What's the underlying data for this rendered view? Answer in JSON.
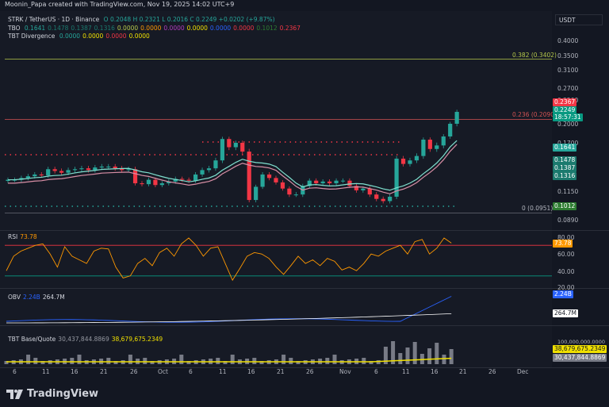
{
  "header": {
    "title": "Moonin_Papa created with TradingView.com, Nov 19, 2025 14:02 UTC+9"
  },
  "currency_button": "USDT",
  "main_legend": {
    "line1_symbol": "STRK / TetherUS · 1D · Binance",
    "line1_values": "O 0.2048  H 0.2321  L 0.2016  C 0.2249  +0.0202 (+9.87%)",
    "line2_label": "TBO",
    "line2_values": [
      "0.1641",
      "0.1478",
      "0.1387",
      "0.1316",
      "0.0000",
      "0.0000",
      "0.0000",
      "0.0000",
      "0.0000",
      "0.0000",
      "0.1012",
      "0.2367"
    ],
    "line3_label": "TBT Divergence",
    "line3_values": [
      "0.0000",
      "0.0000",
      "0.0000",
      "0.0000"
    ]
  },
  "fib_levels": [
    {
      "label": "0.382 (0.3402)",
      "price": 0.3402,
      "color": "#b5c84a"
    },
    {
      "label": "0.236 (0.2090)",
      "price": 0.209,
      "color": "#d35353"
    },
    {
      "label": "0 (0.0951)",
      "price": 0.0951,
      "color": "#787b86"
    }
  ],
  "price_axis": [
    "0.4000",
    "0.3500",
    "0.3100",
    "0.2700",
    "0.2500",
    "0.2000",
    "0.1700",
    "0.1150",
    "0.0890"
  ],
  "price_tags": [
    {
      "text": "0.2367",
      "color": "#f23645"
    },
    {
      "text": "0.2249",
      "color": "#089981"
    },
    {
      "text": "18:57:31",
      "color": "#089981"
    },
    {
      "text": "0.1641",
      "color": "#26a69a"
    },
    {
      "text": "0.1478",
      "color": "#1b7a6e"
    },
    {
      "text": "0.1387",
      "color": "#1b7a6e"
    },
    {
      "text": "0.1316",
      "color": "#1b7a6e"
    },
    {
      "text": "0.1012",
      "color": "#2e7d32"
    }
  ],
  "rsi": {
    "label": "RSI",
    "value": "73.78",
    "levels": [
      "80.00",
      "60.00",
      "40.00",
      "20.00"
    ],
    "tag": "73.78"
  },
  "obv": {
    "label": "OBV",
    "value1": "2.24B",
    "value2": "264.7M",
    "tags": [
      "2.24B",
      "264.7M"
    ]
  },
  "tbt": {
    "label": "TBT Base/Quote",
    "value1": "30,437,844.8869",
    "value2": "38,679,675.2349",
    "axis": "100,000,000.0000",
    "tags": [
      "38,679,675.2349",
      "30,437,844.8869"
    ]
  },
  "x_axis": [
    "6",
    "11",
    "16",
    "21",
    "26",
    "Oct",
    "6",
    "11",
    "16",
    "21",
    "26",
    "Nov",
    "6",
    "11",
    "16",
    "21",
    "26",
    "Dec"
  ],
  "chart_data": {
    "type": "candlestick",
    "closes": [
      0.128,
      0.128,
      0.13,
      0.132,
      0.134,
      0.133,
      0.14,
      0.138,
      0.136,
      0.139,
      0.14,
      0.141,
      0.139,
      0.142,
      0.143,
      0.143,
      0.141,
      0.139,
      0.14,
      0.124,
      0.123,
      0.128,
      0.122,
      0.124,
      0.126,
      0.129,
      0.128,
      0.127,
      0.134,
      0.139,
      0.141,
      0.15,
      0.176,
      0.165,
      0.17,
      0.16,
      0.107,
      0.12,
      0.134,
      0.13,
      0.125,
      0.118,
      0.112,
      0.112,
      0.121,
      0.127,
      0.124,
      0.126,
      0.124,
      0.127,
      0.127,
      0.121,
      0.116,
      0.118,
      0.112,
      0.108,
      0.106,
      0.11,
      0.152,
      0.146,
      0.15,
      0.155,
      0.175,
      0.163,
      0.167,
      0.18,
      0.2,
      0.225
    ],
    "watermark": "TradingView"
  },
  "footer_brand": "TradingView"
}
